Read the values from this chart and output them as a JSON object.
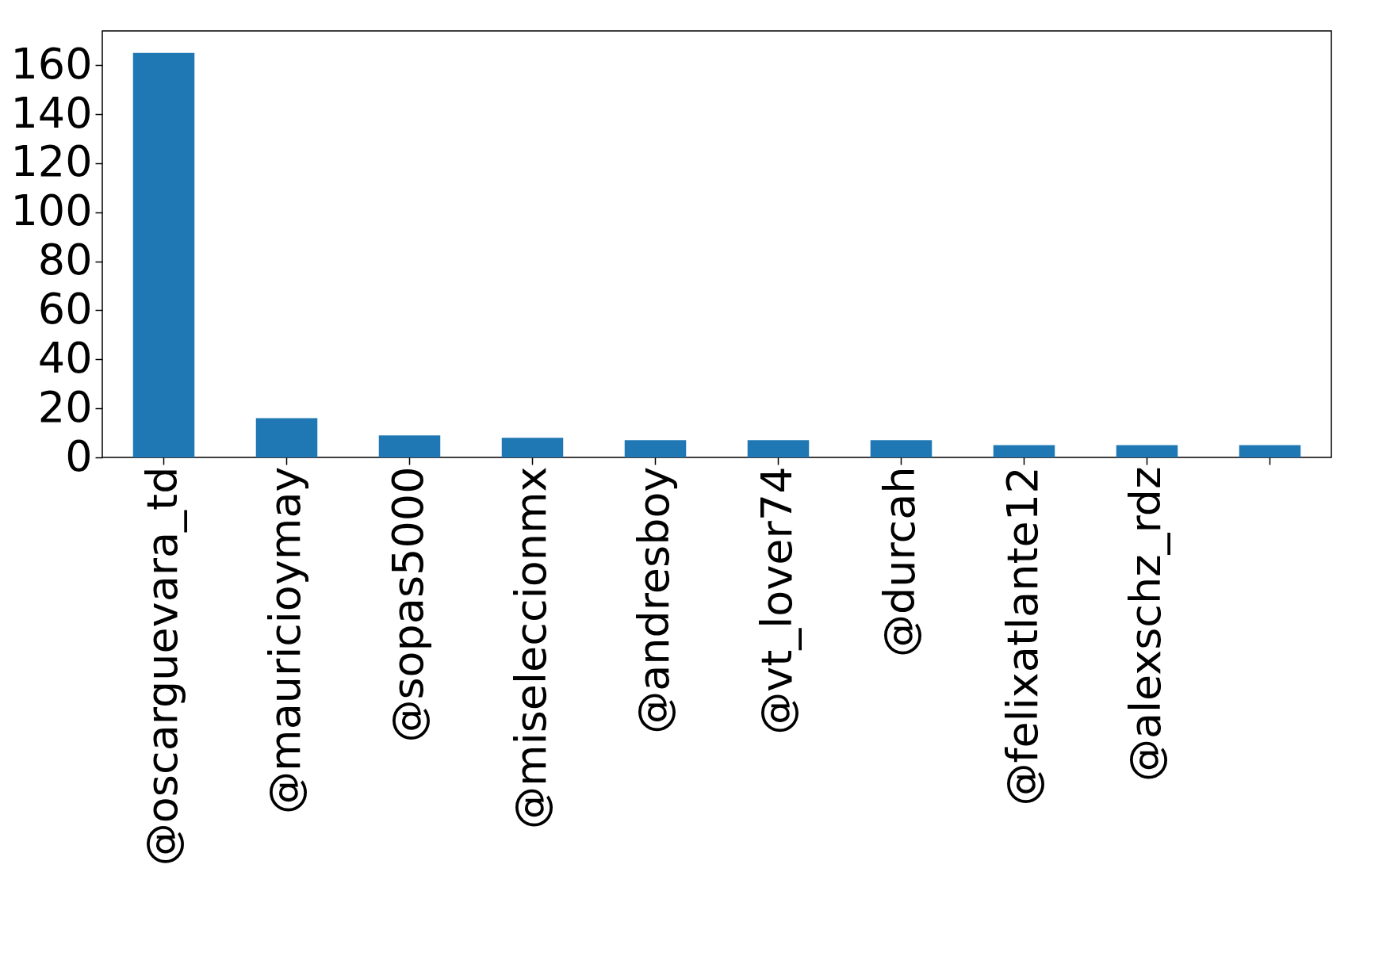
{
  "chart_data": {
    "type": "bar",
    "categories": [
      "@oscarguevara_td",
      "@mauricioymay",
      "@sopas5000",
      "@miseleccionmx",
      "@andresboy",
      "@vt_lover74",
      "@durcah",
      "@felixatlante12",
      "@alexschz_rdz",
      null
    ],
    "values": [
      165,
      16,
      9,
      8,
      7,
      7,
      7,
      5,
      5,
      5
    ],
    "color": "#1f77b4",
    "ylim": [
      0,
      174
    ],
    "yticks": [
      0,
      20,
      40,
      60,
      80,
      100,
      120,
      140,
      160
    ],
    "grid": false,
    "legend": false
  }
}
